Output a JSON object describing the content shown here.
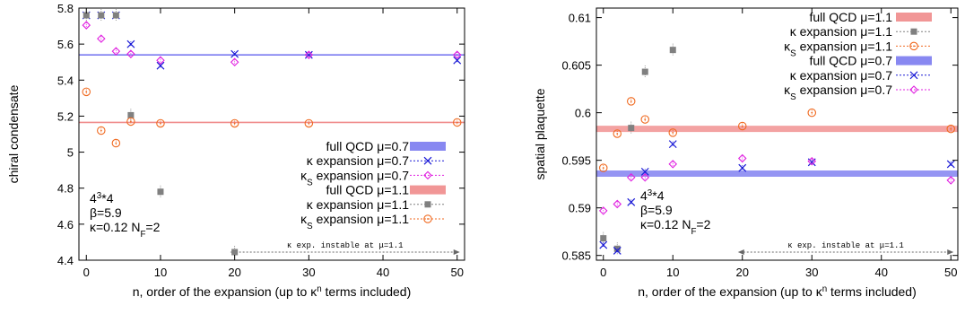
{
  "chart_data": [
    {
      "type": "scatter",
      "xlabel": "n, order of the expansion (up to κ",
      "xlabel_sup": "n",
      "xlabel_tail": " terms included)",
      "ylabel": "chiral condensate",
      "xlim": [
        -1,
        51
      ],
      "ylim": [
        4.4,
        5.8
      ],
      "xticks": [
        0,
        10,
        20,
        30,
        40,
        50
      ],
      "yticks": [
        4.4,
        4.6,
        4.8,
        5.0,
        5.2,
        5.4,
        5.6,
        5.8
      ],
      "ytick_labels": [
        "4.4",
        "4.6",
        "4.8",
        "5",
        "5.2",
        "5.4",
        "5.6",
        "5.8"
      ],
      "grid": false,
      "legend_position": "right",
      "info_lines": [
        {
          "base": "4",
          "sup": "3",
          "tail": "*4"
        },
        {
          "base": "β=5.9",
          "sup": "",
          "tail": ""
        },
        {
          "base": "κ=0.12 N",
          "sub": "F",
          "tail": "=2"
        }
      ],
      "note": "κ exp. instable at μ=1.1",
      "note_range": [
        20,
        50
      ],
      "bands": [
        {
          "name": "full QCD μ=0.7",
          "y": 5.54,
          "color": "#7b7bf0"
        },
        {
          "name": "full QCD μ=1.1",
          "y": 5.165,
          "color": "#f08b8b"
        }
      ],
      "series": [
        {
          "name": "κ expansion μ=0.7",
          "marker": "x",
          "color": "#1a1ad6",
          "x": [
            0,
            2,
            4,
            6,
            10,
            20,
            30,
            50
          ],
          "y": [
            5.76,
            5.76,
            5.76,
            5.6,
            5.48,
            5.545,
            5.54,
            5.51
          ]
        },
        {
          "name": "κ",
          "name_sub": "S",
          "name_tail": " expansion μ=0.7",
          "marker": "diamond",
          "color": "#e020e0",
          "x": [
            0,
            2,
            4,
            6,
            10,
            20,
            30,
            50
          ],
          "y": [
            5.705,
            5.63,
            5.56,
            5.545,
            5.51,
            5.5,
            5.54,
            5.54
          ]
        },
        {
          "name": "κ expansion μ=1.1",
          "marker": "square",
          "color": "#808080",
          "x": [
            0,
            2,
            4,
            6,
            10,
            20
          ],
          "y": [
            5.76,
            5.76,
            5.76,
            5.205,
            4.78,
            4.445
          ]
        },
        {
          "name": "κ",
          "name_sub": "S",
          "name_tail": " expansion μ=1.1",
          "marker": "circle",
          "color": "#f06a20",
          "x": [
            0,
            2,
            4,
            6,
            10,
            20,
            30,
            50
          ],
          "y": [
            5.335,
            5.12,
            5.05,
            5.17,
            5.16,
            5.16,
            5.16,
            5.165
          ]
        }
      ],
      "legend_order": [
        "band0",
        "s0",
        "s1",
        "band1",
        "s2",
        "s3"
      ]
    },
    {
      "type": "scatter",
      "xlabel": "n, order of the expansion (up to κ",
      "xlabel_sup": "n",
      "xlabel_tail": " terms included)",
      "ylabel": "spatial plaquette",
      "xlim": [
        -1,
        51
      ],
      "ylim": [
        0.5845,
        0.611
      ],
      "xticks": [
        0,
        10,
        20,
        30,
        40,
        50
      ],
      "yticks": [
        0.585,
        0.59,
        0.595,
        0.6,
        0.605,
        0.61
      ],
      "ytick_labels": [
        "0.585",
        "0.59",
        "0.595",
        "0.6",
        "0.605",
        "0.61"
      ],
      "grid": false,
      "legend_position": "top-right",
      "info_lines": [
        {
          "base": "4",
          "sup": "3",
          "tail": "*4"
        },
        {
          "base": "β=5.9",
          "sup": "",
          "tail": ""
        },
        {
          "base": "κ=0.12 N",
          "sub": "F",
          "tail": "=2"
        }
      ],
      "note": "κ exp. instable at μ=1.1",
      "note_range": [
        20,
        50
      ],
      "bands": [
        {
          "name": "full QCD μ=1.1",
          "y": 0.5983,
          "color": "#f08b8b"
        },
        {
          "name": "full QCD μ=0.7",
          "y": 0.5936,
          "color": "#7b7bf0"
        }
      ],
      "series": [
        {
          "name": "κ expansion μ=1.1",
          "marker": "square",
          "color": "#808080",
          "x": [
            0,
            2,
            4,
            6,
            10
          ],
          "y": [
            0.5868,
            0.5857,
            0.5984,
            0.6043,
            0.6066
          ]
        },
        {
          "name": "κ",
          "name_sub": "S",
          "name_tail": " expansion μ=1.1",
          "marker": "circle",
          "color": "#f06a20",
          "x": [
            0,
            2,
            4,
            6,
            10,
            20,
            30,
            50
          ],
          "y": [
            0.5942,
            0.5978,
            0.6012,
            0.5993,
            0.5979,
            0.5986,
            0.6,
            0.5983
          ]
        },
        {
          "name": "κ expansion μ=0.7",
          "marker": "x",
          "color": "#1a1ad6",
          "x": [
            0,
            2,
            4,
            6,
            10,
            20,
            30,
            50
          ],
          "y": [
            0.5861,
            0.5855,
            0.5906,
            0.5938,
            0.5967,
            0.5942,
            0.5948,
            0.5946
          ]
        },
        {
          "name": "κ",
          "name_sub": "S",
          "name_tail": " expansion μ=0.7",
          "marker": "diamond",
          "color": "#e020e0",
          "x": [
            0,
            2,
            4,
            6,
            10,
            20,
            30,
            50
          ],
          "y": [
            0.5897,
            0.5904,
            0.5932,
            0.5932,
            0.5946,
            0.5952,
            0.5949,
            0.5929
          ]
        }
      ],
      "legend_order": [
        "band0",
        "s0",
        "s1",
        "band1",
        "s2",
        "s3"
      ]
    }
  ]
}
